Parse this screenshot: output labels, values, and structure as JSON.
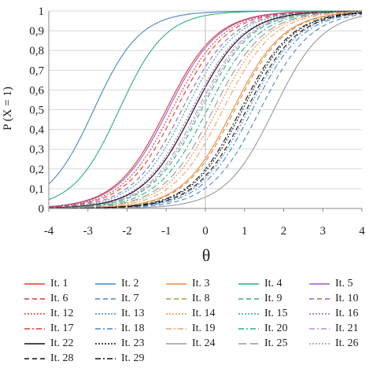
{
  "chart_data": {
    "type": "line",
    "title": "",
    "xlabel": "θ",
    "ylabel": "P (X = 1)",
    "xlim": [
      -4,
      4
    ],
    "ylim": [
      0,
      1
    ],
    "x_ticks": [
      "-4",
      "-3",
      "-2",
      "-1",
      "0",
      "1",
      "2",
      "3",
      "4"
    ],
    "y_ticks": [
      "0",
      "0,1",
      "0,2",
      "0,3",
      "0,4",
      "0,5",
      "0,6",
      "0,7",
      "0,8",
      "0,9",
      "1"
    ],
    "grid": "horizontal",
    "legend_position": "bottom",
    "curve_model": "2PL logistic: P = 1 / (1 + exp(-a (θ - b)))",
    "series": [
      {
        "name": "It. 1",
        "b": -1.0,
        "a": 1.55,
        "color": "#e03a2f",
        "dash": "solid"
      },
      {
        "name": "It. 2",
        "b": -2.85,
        "a": 1.7,
        "color": "#4a86c5",
        "dash": "solid"
      },
      {
        "name": "It. 3",
        "b": 0.7,
        "a": 1.55,
        "color": "#f08a3c",
        "dash": "solid"
      },
      {
        "name": "It. 4",
        "b": -2.2,
        "a": 1.7,
        "color": "#2bb07f",
        "dash": "solid"
      },
      {
        "name": "It. 5",
        "b": -0.95,
        "a": 1.55,
        "color": "#9a5fc9",
        "dash": "solid"
      },
      {
        "name": "It. 6",
        "b": -0.75,
        "a": 1.55,
        "color": "#e03a2f",
        "dash": "dashed"
      },
      {
        "name": "It. 7",
        "b": 1.4,
        "a": 1.55,
        "color": "#4a86c5",
        "dash": "dashed"
      },
      {
        "name": "It. 8",
        "b": 0.75,
        "a": 1.55,
        "color": "#c98a3c",
        "dash": "dashed"
      },
      {
        "name": "It. 9",
        "b": -0.1,
        "a": 1.55,
        "color": "#2bb07f",
        "dash": "dashed"
      },
      {
        "name": "It. 10",
        "b": -0.6,
        "a": 1.55,
        "color": "#9a5fc9",
        "dash": "dashed"
      },
      {
        "name": "It. 12",
        "b": -0.85,
        "a": 1.55,
        "color": "#e03a2f",
        "dash": "dotted"
      },
      {
        "name": "It. 13",
        "b": 1.1,
        "a": 1.55,
        "color": "#4a86c5",
        "dash": "dotted"
      },
      {
        "name": "It. 14",
        "b": 0.3,
        "a": 1.55,
        "color": "#f08a3c",
        "dash": "dotted"
      },
      {
        "name": "It. 15",
        "b": -0.5,
        "a": 1.55,
        "color": "#2bb07f",
        "dash": "dotted"
      },
      {
        "name": "It. 16",
        "b": -0.35,
        "a": 1.55,
        "color": "#9a5fc9",
        "dash": "dotted"
      },
      {
        "name": "It. 17",
        "b": -0.3,
        "a": 1.55,
        "color": "#e03a2f",
        "dash": "dashdot"
      },
      {
        "name": "It. 18",
        "b": 1.2,
        "a": 1.55,
        "color": "#4a86c5",
        "dash": "dashdot"
      },
      {
        "name": "It. 19",
        "b": 0.45,
        "a": 1.55,
        "color": "#f0a06a",
        "dash": "dashdot"
      },
      {
        "name": "It. 20",
        "b": 0.05,
        "a": 1.55,
        "color": "#2bb07f",
        "dash": "dashdot"
      },
      {
        "name": "It. 21",
        "b": -0.2,
        "a": 1.55,
        "color": "#b890d8",
        "dash": "dashdot"
      },
      {
        "name": "It. 22",
        "b": -0.3,
        "a": 1.55,
        "color": "#111111",
        "dash": "solid"
      },
      {
        "name": "It. 23",
        "b": 0.95,
        "a": 1.55,
        "color": "#111111",
        "dash": "dotted"
      },
      {
        "name": "It. 24",
        "b": 1.75,
        "a": 1.6,
        "color": "#999999",
        "dash": "solid"
      },
      {
        "name": "It. 25",
        "b": 0.2,
        "a": 1.55,
        "color": "#999999",
        "dash": "longdash"
      },
      {
        "name": "It. 26",
        "b": -0.15,
        "a": 1.55,
        "color": "#999999",
        "dash": "dotted"
      },
      {
        "name": "It. 28",
        "b": 1.05,
        "a": 1.55,
        "color": "#111111",
        "dash": "dashed"
      },
      {
        "name": "It. 29",
        "b": 0.9,
        "a": 1.55,
        "color": "#111111",
        "dash": "dashdot"
      }
    ]
  }
}
